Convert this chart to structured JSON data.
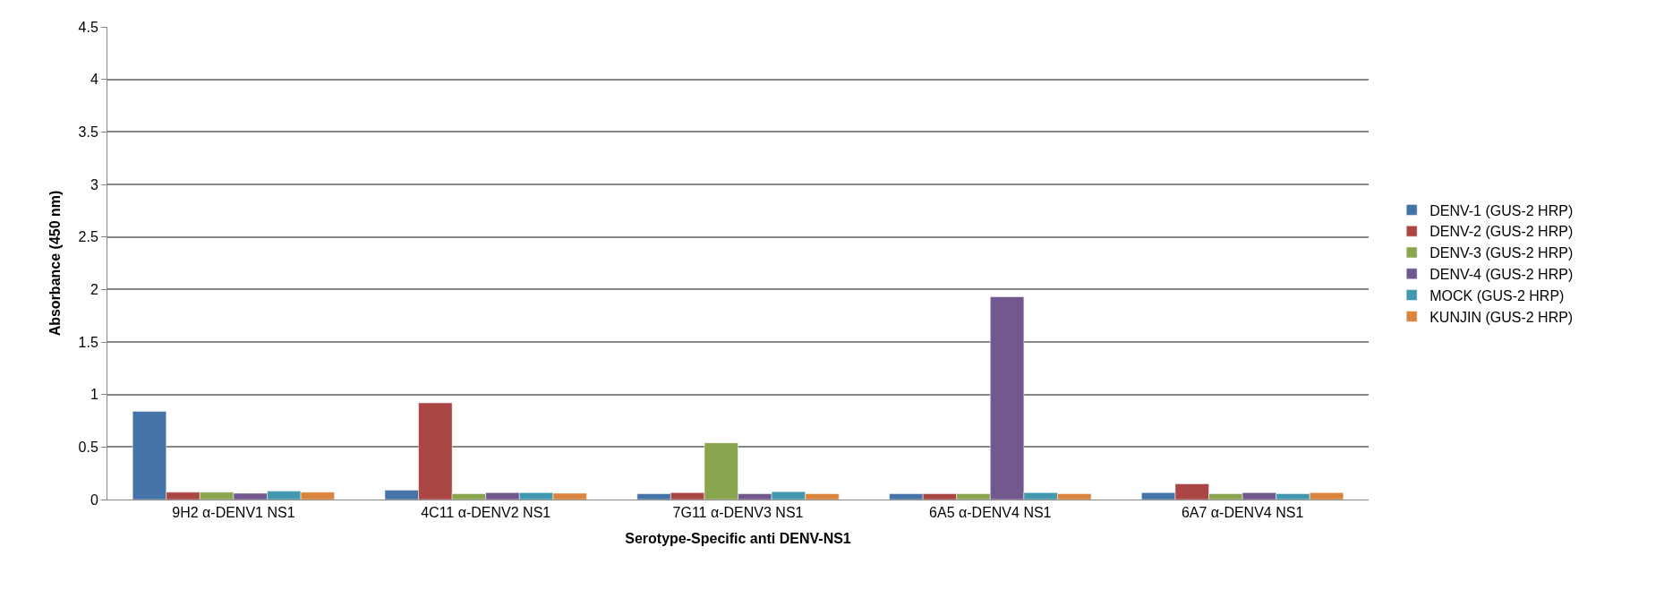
{
  "chart_data": {
    "type": "bar",
    "xlabel": "Serotype-Specific anti DENV-NS1",
    "ylabel": "Absorbance (450 nm)",
    "categories": [
      "9H2 α-DENV1 NS1",
      "4C11 α-DENV2 NS1",
      "7G11 α-DENV3 NS1",
      "6A5 α-DENV4 NS1",
      "6A7 α-DENV4 NS1"
    ],
    "series": [
      {
        "name": "DENV-1 (GUS-2 HRP)",
        "color": "#4572a7",
        "values": [
          0.84,
          0.09,
          0.055,
          0.055,
          0.065
        ]
      },
      {
        "name": "DENV-2 (GUS-2 HRP)",
        "color": "#aa4643",
        "values": [
          0.07,
          0.92,
          0.065,
          0.055,
          0.15
        ]
      },
      {
        "name": "DENV-3 (GUS-2 HRP)",
        "color": "#89a54e",
        "values": [
          0.07,
          0.055,
          0.54,
          0.055,
          0.055
        ]
      },
      {
        "name": "DENV-4 (GUS-2 HRP)",
        "color": "#71588f",
        "values": [
          0.06,
          0.065,
          0.055,
          1.93,
          0.065
        ]
      },
      {
        "name": "MOCK (GUS-2 HRP)",
        "color": "#4198af",
        "values": [
          0.08,
          0.065,
          0.075,
          0.065,
          0.055
        ]
      },
      {
        "name": "KUNJIN (GUS-2 HRP)",
        "color": "#db843d",
        "values": [
          0.07,
          0.06,
          0.055,
          0.055,
          0.065
        ]
      }
    ],
    "ylim": [
      0,
      4.5
    ],
    "yticks": [
      0,
      0.5,
      1,
      1.5,
      2,
      2.5,
      3,
      3.5,
      4,
      4.5
    ],
    "grid": "y",
    "legend": "right"
  }
}
